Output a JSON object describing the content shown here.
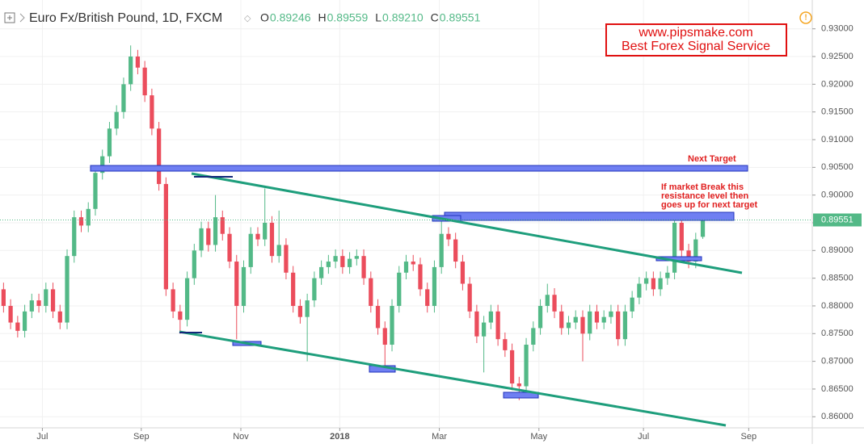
{
  "chart_data": {
    "type": "candlestick",
    "title": "Euro Fx/British Pound, 1D, FXCM",
    "ohlc_legend": [
      {
        "label": "O",
        "value": "0.89246"
      },
      {
        "label": "H",
        "value": "0.89559"
      },
      {
        "label": "L",
        "value": "0.89210"
      },
      {
        "label": "C",
        "value": "0.89551"
      }
    ],
    "open": [
      0.883,
      0.88,
      0.877,
      0.8755,
      0.879,
      0.881,
      0.88,
      0.883,
      0.879,
      0.877,
      0.889,
      0.896,
      0.8945,
      0.8975,
      0.904,
      0.907,
      0.912,
      0.915,
      0.92,
      0.925,
      0.923,
      0.918,
      0.912,
      0.902,
      0.883,
      0.879,
      0.8775,
      0.885,
      0.89,
      0.894,
      0.891,
      0.896,
      0.893,
      0.888,
      0.88,
      0.887,
      0.893,
      0.892,
      0.895,
      0.889,
      0.891,
      0.886,
      0.88,
      0.878,
      0.881,
      0.885,
      0.887,
      0.888,
      0.889,
      0.887,
      0.8885,
      0.889,
      0.885,
      0.88,
      0.876,
      0.873,
      0.88,
      0.886,
      0.888,
      0.8875,
      0.883,
      0.88,
      0.887,
      0.893,
      0.892,
      0.888,
      0.884,
      0.879,
      0.8745,
      0.877,
      0.879,
      0.874,
      0.872,
      0.866,
      0.8655,
      0.873,
      0.876,
      0.88,
      0.882,
      0.879,
      0.876,
      0.877,
      0.878,
      0.875,
      0.879,
      0.877,
      0.878,
      0.879,
      0.874,
      0.879,
      0.8815,
      0.884,
      0.885,
      0.883,
      0.885,
      0.886,
      0.895,
      0.89,
      0.888,
      0.89246
    ],
    "high": [
      0.8842,
      0.8812,
      0.8782,
      0.8802,
      0.8822,
      0.8822,
      0.8842,
      0.8842,
      0.8802,
      0.8902,
      0.8972,
      0.8972,
      0.8987,
      0.9052,
      0.9082,
      0.9132,
      0.9162,
      0.9212,
      0.927,
      0.9262,
      0.9242,
      0.9192,
      0.9132,
      0.9032,
      0.8842,
      0.8802,
      0.8862,
      0.8912,
      0.8952,
      0.8952,
      0.9,
      0.8972,
      0.8942,
      0.8892,
      0.8882,
      0.8942,
      0.8942,
      0.9012,
      0.8962,
      0.8972,
      0.8922,
      0.8872,
      0.8812,
      0.8822,
      0.8862,
      0.8882,
      0.8892,
      0.8902,
      0.8902,
      0.8897,
      0.8902,
      0.8902,
      0.8862,
      0.8812,
      0.8772,
      0.8812,
      0.8872,
      0.8892,
      0.8892,
      0.8887,
      0.8842,
      0.8882,
      0.896,
      0.8942,
      0.8932,
      0.8892,
      0.8852,
      0.8802,
      0.8782,
      0.8802,
      0.8802,
      0.8752,
      0.8732,
      0.8672,
      0.8742,
      0.8772,
      0.8812,
      0.884,
      0.8832,
      0.8802,
      0.8782,
      0.8792,
      0.8792,
      0.8802,
      0.8802,
      0.8792,
      0.8802,
      0.8802,
      0.8802,
      0.8827,
      0.8852,
      0.8862,
      0.8862,
      0.8862,
      0.8872,
      0.8962,
      0.8962,
      0.8912,
      0.8932,
      0.89559
    ],
    "low": [
      0.8788,
      0.8758,
      0.8743,
      0.8743,
      0.8778,
      0.8788,
      0.8788,
      0.8778,
      0.8758,
      0.8758,
      0.8878,
      0.8933,
      0.8933,
      0.8963,
      0.9028,
      0.9058,
      0.9108,
      0.9138,
      0.9188,
      0.9218,
      0.9168,
      0.9108,
      0.9008,
      0.8818,
      0.8778,
      0.875,
      0.8763,
      0.8838,
      0.8888,
      0.8898,
      0.8898,
      0.8918,
      0.8868,
      0.874,
      0.8788,
      0.8858,
      0.8908,
      0.8908,
      0.8878,
      0.8878,
      0.8848,
      0.8788,
      0.8768,
      0.87,
      0.8798,
      0.8838,
      0.8858,
      0.8868,
      0.8858,
      0.8858,
      0.8873,
      0.8838,
      0.8788,
      0.8748,
      0.869,
      0.8718,
      0.8788,
      0.8848,
      0.8863,
      0.8818,
      0.8788,
      0.8788,
      0.8858,
      0.8908,
      0.8868,
      0.8828,
      0.8778,
      0.8733,
      0.868,
      0.8758,
      0.8728,
      0.8708,
      0.8648,
      0.863,
      0.8643,
      0.8718,
      0.8748,
      0.8788,
      0.8778,
      0.8748,
      0.8748,
      0.8758,
      0.87,
      0.8738,
      0.8758,
      0.8758,
      0.8768,
      0.8728,
      0.8728,
      0.8778,
      0.8803,
      0.8828,
      0.8818,
      0.8818,
      0.8838,
      0.8848,
      0.8888,
      0.8868,
      0.8868,
      0.8921
    ],
    "close": [
      0.88,
      0.877,
      0.8755,
      0.879,
      0.881,
      0.88,
      0.883,
      0.879,
      0.877,
      0.889,
      0.896,
      0.8945,
      0.8975,
      0.904,
      0.907,
      0.912,
      0.915,
      0.92,
      0.925,
      0.923,
      0.918,
      0.912,
      0.902,
      0.883,
      0.879,
      0.8775,
      0.885,
      0.89,
      0.894,
      0.891,
      0.896,
      0.893,
      0.888,
      0.88,
      0.887,
      0.893,
      0.892,
      0.895,
      0.889,
      0.891,
      0.886,
      0.88,
      0.878,
      0.881,
      0.885,
      0.887,
      0.888,
      0.889,
      0.887,
      0.8885,
      0.889,
      0.885,
      0.88,
      0.876,
      0.873,
      0.88,
      0.886,
      0.888,
      0.8875,
      0.883,
      0.88,
      0.887,
      0.893,
      0.892,
      0.888,
      0.884,
      0.879,
      0.8745,
      0.877,
      0.879,
      0.874,
      0.872,
      0.866,
      0.8655,
      0.873,
      0.876,
      0.88,
      0.882,
      0.879,
      0.876,
      0.877,
      0.878,
      0.875,
      0.879,
      0.877,
      0.878,
      0.879,
      0.874,
      0.879,
      0.8815,
      0.884,
      0.885,
      0.883,
      0.885,
      0.886,
      0.895,
      0.89,
      0.888,
      0.892,
      0.89551
    ],
    "up_color": "#53b987",
    "down_color": "#eb4d5c",
    "xlim": [
      -0.5,
      114.5
    ],
    "xticks": [
      {
        "value": 5.5,
        "label": "Jul"
      },
      {
        "value": 19.5,
        "label": "Sep"
      },
      {
        "value": 33.6,
        "label": "Nov"
      },
      {
        "value": 47.6,
        "label": "2018"
      },
      {
        "value": 61.7,
        "label": "Mar"
      },
      {
        "value": 75.8,
        "label": "May"
      },
      {
        "value": 90.6,
        "label": "Jul"
      },
      {
        "value": 105.5,
        "label": "Sep"
      }
    ],
    "ylim": [
      0.858,
      0.9352
    ],
    "yticks": [
      {
        "value": 0.86,
        "label": "0.86000"
      },
      {
        "value": 0.865,
        "label": "0.86500"
      },
      {
        "value": 0.87,
        "label": "0.87000"
      },
      {
        "value": 0.875,
        "label": "0.87500"
      },
      {
        "value": 0.88,
        "label": "0.88000"
      },
      {
        "value": 0.885,
        "label": "0.88500"
      },
      {
        "value": 0.89,
        "label": "0.89000"
      },
      {
        "value": 0.895,
        "label": "0.89500"
      },
      {
        "value": 0.9,
        "label": "0.90000"
      },
      {
        "value": 0.905,
        "label": "0.90500"
      },
      {
        "value": 0.91,
        "label": "0.91000"
      },
      {
        "value": 0.915,
        "label": "0.91500"
      },
      {
        "value": 0.92,
        "label": "0.92000"
      },
      {
        "value": 0.925,
        "label": "0.92500"
      },
      {
        "value": 0.93,
        "label": "0.93000"
      }
    ],
    "last_price": {
      "value": 0.89551,
      "label": "0.89551"
    },
    "annotations": {
      "next_target": "Next Target",
      "breakout_note": [
        "If market Break this",
        "resistance level then",
        "goes up for next target"
      ]
    },
    "watermark": [
      "www.pipsmake.com",
      "Best Forex Signal Service"
    ]
  }
}
